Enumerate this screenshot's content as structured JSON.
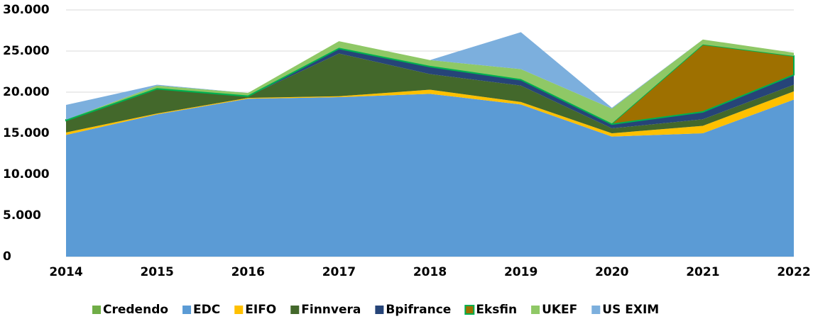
{
  "chart_data": {
    "type": "stacked_area",
    "categories": [
      "2014",
      "2015",
      "2016",
      "2017",
      "2018",
      "2019",
      "2020",
      "2021",
      "2022"
    ],
    "series": [
      {
        "name": "Credendo",
        "color": "#70ad47",
        "values": [
          0,
          0,
          0,
          0,
          0,
          0,
          0,
          0,
          0
        ]
      },
      {
        "name": "EDC",
        "color": "#5b9bd5",
        "values": [
          14800,
          17300,
          19200,
          19400,
          19800,
          18500,
          14600,
          15000,
          19100
        ]
      },
      {
        "name": "EIFO",
        "color": "#ffc000",
        "values": [
          300,
          100,
          100,
          100,
          500,
          300,
          400,
          900,
          1000
        ]
      },
      {
        "name": "Finnvera",
        "color": "#43682b",
        "values": [
          1450,
          3000,
          200,
          5200,
          1900,
          2000,
          600,
          800,
          800
        ]
      },
      {
        "name": "Bpifrance",
        "color": "#264478",
        "values": [
          0,
          0,
          0,
          600,
          900,
          700,
          500,
          900,
          1200
        ]
      },
      {
        "name": "Eksfin",
        "color": "#9e7000",
        "stroke": "#00b050",
        "values": [
          100,
          100,
          100,
          100,
          100,
          100,
          100,
          8200,
          2300
        ]
      },
      {
        "name": "UKEF",
        "color": "#8fc866",
        "values": [
          0,
          300,
          300,
          800,
          700,
          1200,
          1800,
          600,
          400
        ]
      },
      {
        "name": "US EXIM",
        "color": "#7cafdd",
        "values": [
          1800,
          100,
          0,
          0,
          0,
          4500,
          100,
          0,
          0
        ]
      }
    ],
    "ylim": [
      0,
      30000
    ],
    "yticks": [
      0,
      {
        "value": 5000,
        "label": "5.000"
      },
      {
        "value": 10000,
        "label": "10.000"
      },
      {
        "value": 15000,
        "label": "15.000"
      },
      {
        "value": 20000,
        "label": "20.000"
      },
      {
        "value": 25000,
        "label": "25.000"
      },
      {
        "value": 30000,
        "label": "30.000"
      }
    ],
    "grid": true,
    "legend": "bottom"
  }
}
